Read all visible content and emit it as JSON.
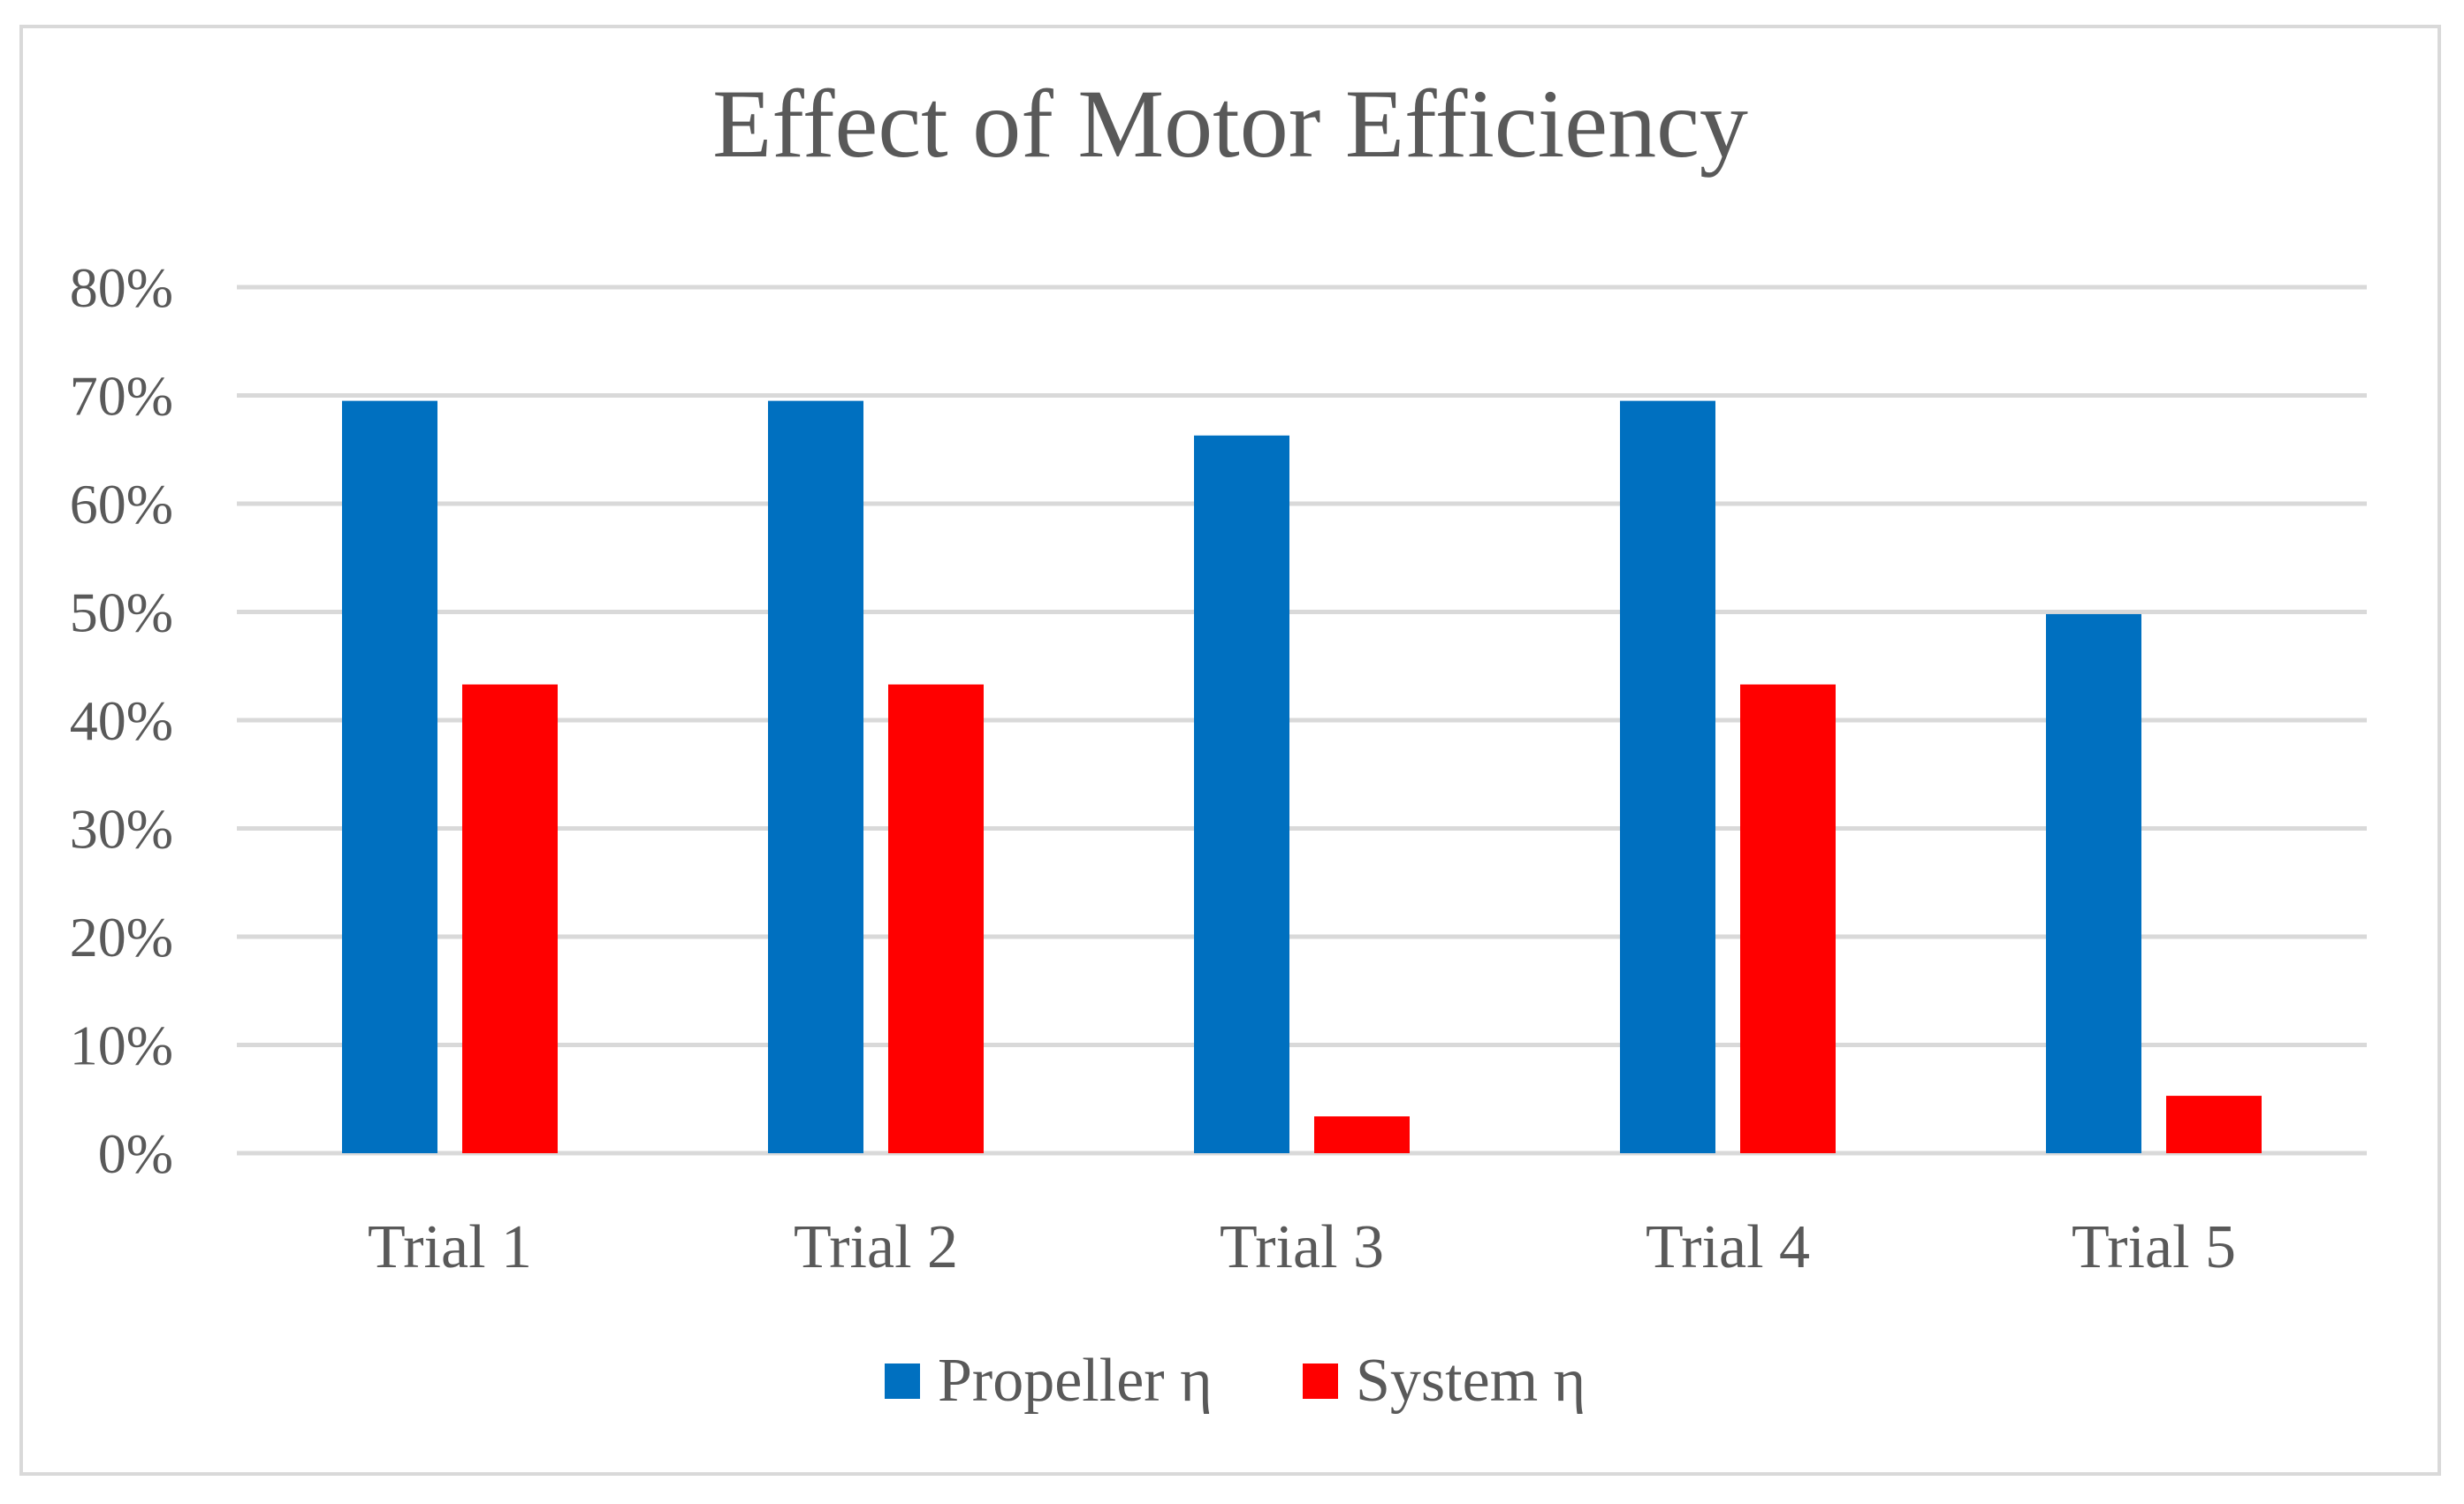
{
  "chart_data": {
    "type": "bar",
    "title": "Effect of Motor Efficiency",
    "categories": [
      "Trial 1",
      "Trial 2",
      "Trial 3",
      "Trial 4",
      "Trial 5"
    ],
    "series": [
      {
        "name": "Propeller η",
        "color": "#0070C0",
        "values": [
          69.5,
          69.5,
          66.3,
          69.5,
          49.8
        ]
      },
      {
        "name": "System η",
        "color": "#FF0000",
        "values": [
          43.3,
          43.3,
          3.4,
          43.3,
          5.3
        ]
      }
    ],
    "ylim": [
      0,
      80
    ],
    "yticks": [
      0,
      10,
      20,
      30,
      40,
      50,
      60,
      70,
      80
    ],
    "ytick_labels": [
      "0%",
      "10%",
      "20%",
      "30%",
      "40%",
      "50%",
      "60%",
      "70%",
      "80%"
    ],
    "xlabel": "",
    "ylabel": "",
    "grid": true,
    "legend_position": "bottom"
  }
}
